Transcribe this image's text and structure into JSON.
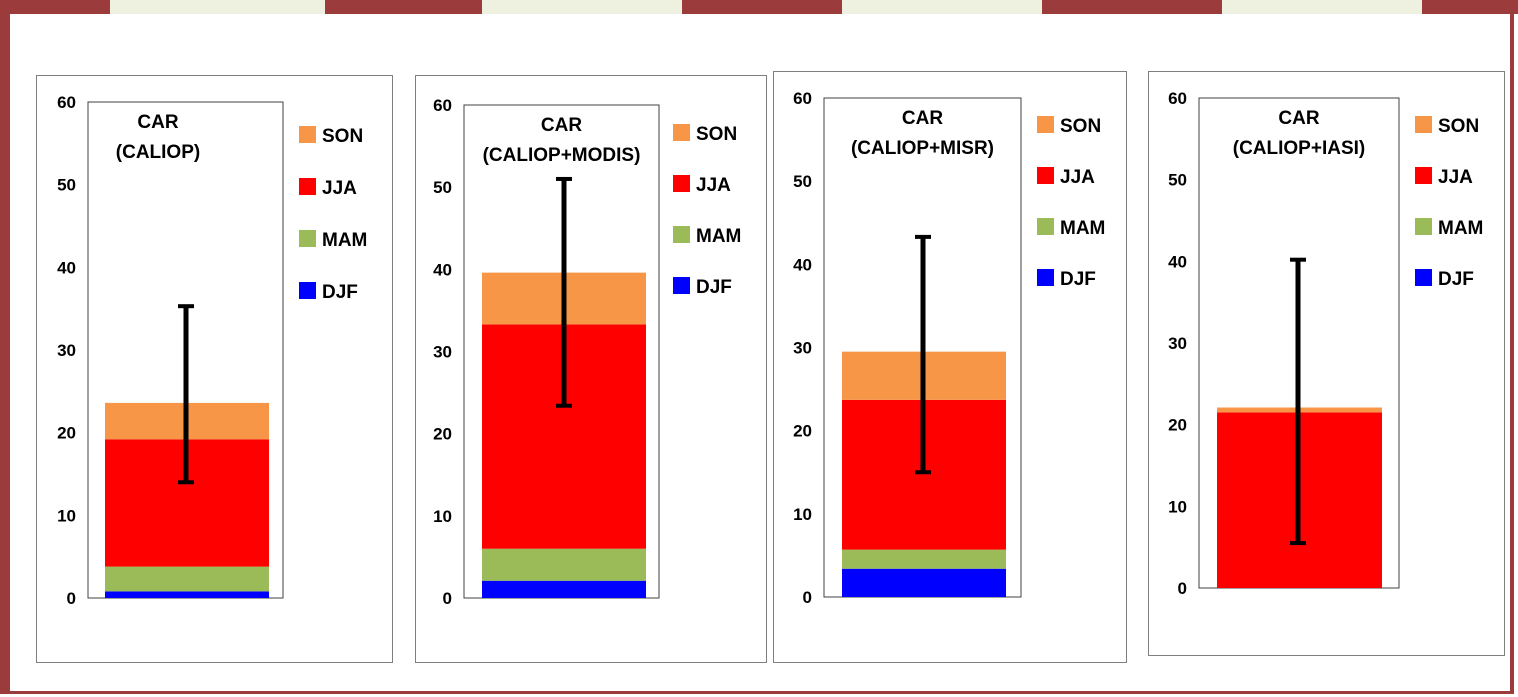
{
  "colors": {
    "frame": "#9b3b3b",
    "tab": "#eef0e0",
    "SON": "#f79646",
    "JJA": "#ff0000",
    "MAM": "#9bbb59",
    "DJF": "#0000ff",
    "error_bar": "#000000"
  },
  "chart_data": [
    {
      "type": "bar",
      "stacked": true,
      "title_lines": [
        "CAR",
        "(CALIOP)"
      ],
      "ylim": [
        0,
        60
      ],
      "yticks": [
        "0",
        "10",
        "20",
        "30",
        "40",
        "50",
        "60"
      ],
      "series": [
        {
          "name": "DJF",
          "value": 0.8
        },
        {
          "name": "MAM",
          "value": 3.0
        },
        {
          "name": "JJA",
          "value": 15.4
        },
        {
          "name": "SON",
          "value": 4.4
        }
      ],
      "total": 23.6,
      "error_bar": [
        14.0,
        35.3
      ],
      "legend": [
        "SON",
        "JJA",
        "MAM",
        "DJF"
      ],
      "legend_position": "right"
    },
    {
      "type": "bar",
      "stacked": true,
      "title_lines": [
        "CAR",
        "(CALIOP+MODIS)"
      ],
      "ylim": [
        0,
        60
      ],
      "yticks": [
        "0",
        "10",
        "20",
        "30",
        "40",
        "50",
        "60"
      ],
      "series": [
        {
          "name": "DJF",
          "value": 2.1
        },
        {
          "name": "MAM",
          "value": 3.9
        },
        {
          "name": "JJA",
          "value": 27.3
        },
        {
          "name": "SON",
          "value": 6.3
        }
      ],
      "total": 39.6,
      "error_bar": [
        23.4,
        51.0
      ],
      "legend": [
        "SON",
        "JJA",
        "MAM",
        "DJF"
      ],
      "legend_position": "right"
    },
    {
      "type": "bar",
      "stacked": true,
      "title_lines": [
        "CAR",
        "(CALIOP+MISR)"
      ],
      "ylim": [
        0,
        60
      ],
      "yticks": [
        "0",
        "10",
        "20",
        "30",
        "40",
        "50",
        "60"
      ],
      "series": [
        {
          "name": "DJF",
          "value": 3.4
        },
        {
          "name": "MAM",
          "value": 2.3
        },
        {
          "name": "JJA",
          "value": 18.0
        },
        {
          "name": "SON",
          "value": 5.8
        }
      ],
      "total": 29.5,
      "error_bar": [
        15.0,
        43.3
      ],
      "legend": [
        "SON",
        "JJA",
        "MAM",
        "DJF"
      ],
      "legend_position": "right"
    },
    {
      "type": "bar",
      "stacked": true,
      "title_lines": [
        "CAR",
        "(CALIOP+IASI)"
      ],
      "ylim": [
        0,
        60
      ],
      "yticks": [
        "0",
        "10",
        "20",
        "30",
        "40",
        "50",
        "60"
      ],
      "series": [
        {
          "name": "DJF",
          "value": 0.0
        },
        {
          "name": "MAM",
          "value": 0.0
        },
        {
          "name": "JJA",
          "value": 21.5
        },
        {
          "name": "SON",
          "value": 0.6
        }
      ],
      "total": 22.1,
      "error_bar": [
        5.5,
        40.2
      ],
      "legend": [
        "SON",
        "JJA",
        "MAM",
        "DJF"
      ],
      "legend_position": "right"
    }
  ]
}
